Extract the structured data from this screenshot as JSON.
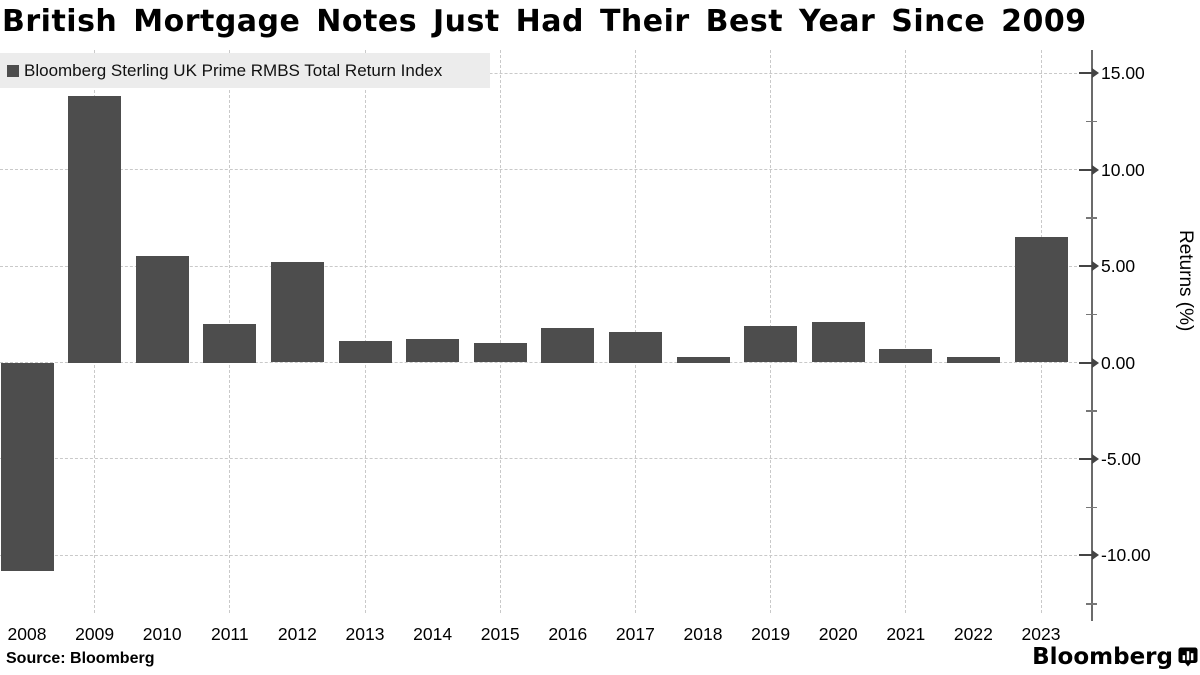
{
  "title": "British Mortgage Notes Just Had Their Best Year Since 2009",
  "legend": {
    "label": "Bloomberg Sterling UK Prime RMBS Total Return Index",
    "swatch_color": "#4d4d4d"
  },
  "source": "Source: Bloomberg",
  "branding": {
    "logo_text": "Bloomberg",
    "logo_icon": "bloomberg-terminal-icon"
  },
  "colors": {
    "bar": "#4d4d4d",
    "grid": "#c9c9c9",
    "axis": "#6b6b6b",
    "tick": "#444444",
    "legend_bg": "#ececec",
    "text": "#000000",
    "background": "#ffffff"
  },
  "chart_data": {
    "type": "bar",
    "title": "British Mortgage Notes Just Had Their Best Year Since 2009",
    "series_name": "Bloomberg Sterling UK Prime RMBS Total Return Index",
    "categories": [
      "2008",
      "2009",
      "2010",
      "2011",
      "2012",
      "2013",
      "2014",
      "2015",
      "2016",
      "2017",
      "2018",
      "2019",
      "2020",
      "2021",
      "2022",
      "2023"
    ],
    "values": [
      -10.8,
      13.8,
      5.5,
      2.0,
      5.2,
      1.1,
      1.2,
      1.0,
      1.8,
      1.6,
      0.3,
      1.9,
      2.1,
      0.7,
      0.3,
      6.5
    ],
    "xlabel": "",
    "ylabel": "Returns (%)",
    "ylim": [
      -13.4,
      16.2
    ],
    "yticks_major": [
      15,
      10,
      5,
      0,
      -5,
      -10
    ],
    "ytick_labels": [
      "15.00",
      "10.00",
      "5.00",
      "0.00",
      "-5.00",
      "-10.00"
    ],
    "yticks_minor": [
      12.5,
      7.5,
      2.5,
      -2.5,
      -7.5,
      -12.5
    ],
    "grid": true,
    "vertical_gridline_years": [
      "2009",
      "2011",
      "2013",
      "2015",
      "2017",
      "2019",
      "2021",
      "2023"
    ],
    "legend_position": "top-left",
    "y_axis_side": "right"
  }
}
